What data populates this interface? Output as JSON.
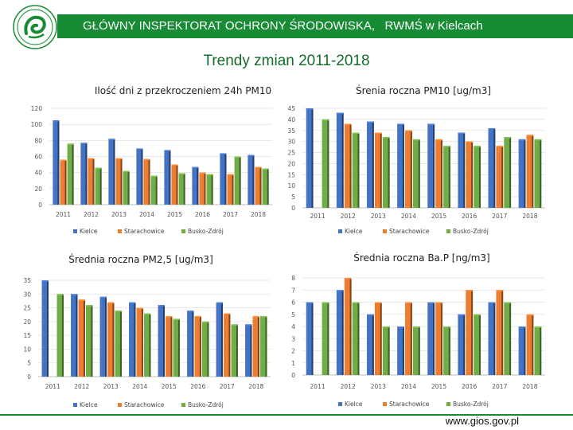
{
  "header": {
    "title": "GŁÓWNY INSPEKTORAT OCHRONY ŚRODOWISKA,   RWMŚ w Kielcach"
  },
  "main_title": "Trendy zmian 2011-2018",
  "footer": {
    "url": "www.gios.gov.pl"
  },
  "colors": {
    "Kielce": "#4472c4",
    "Starachowice": "#ed7d31",
    "Busko-Zdrój": "#70ad47"
  },
  "chart_data": [
    {
      "type": "bar",
      "title": "Ilość dni z przekroczeniem 24h PM10",
      "categories": [
        "2011",
        "2012",
        "2013",
        "2014",
        "2015",
        "2016",
        "2017",
        "2018"
      ],
      "ylim": [
        0,
        120
      ],
      "yticks": [
        0,
        20,
        40,
        60,
        80,
        100,
        120
      ],
      "series": [
        {
          "name": "Kielce",
          "values": [
            105,
            77,
            82,
            70,
            68,
            47,
            64,
            62
          ]
        },
        {
          "name": "Starachowice",
          "values": [
            56,
            58,
            58,
            57,
            50,
            40,
            38,
            47
          ]
        },
        {
          "name": "Busko-Zdrój",
          "values": [
            76,
            46,
            42,
            36,
            39,
            38,
            60,
            45
          ]
        }
      ]
    },
    {
      "type": "bar",
      "title": "Śrenia roczna PM10 [ug/m3]",
      "categories": [
        "2011",
        "2012",
        "2013",
        "2014",
        "2015",
        "2016",
        "2017",
        "2018"
      ],
      "ylim": [
        0,
        45
      ],
      "yticks": [
        0,
        5,
        10,
        15,
        20,
        25,
        30,
        35,
        40,
        45
      ],
      "series": [
        {
          "name": "Kielce",
          "values": [
            45,
            43,
            39,
            38,
            38,
            34,
            36,
            31
          ]
        },
        {
          "name": "Starachowice",
          "values": [
            0,
            38,
            34,
            35,
            31,
            30,
            28,
            33
          ]
        },
        {
          "name": "Busko-Zdrój",
          "values": [
            40,
            34,
            32,
            31,
            28,
            28,
            32,
            31
          ]
        }
      ]
    },
    {
      "type": "bar",
      "title": "Średnia roczna PM2,5 [ug/m3]",
      "categories": [
        "2011",
        "2012",
        "2013",
        "2014",
        "2015",
        "2016",
        "2017",
        "2018"
      ],
      "ylim": [
        0,
        35
      ],
      "yticks": [
        0,
        5,
        10,
        15,
        20,
        25,
        30,
        35
      ],
      "series": [
        {
          "name": "Kielce",
          "values": [
            35,
            30,
            29,
            27,
            26,
            24,
            27,
            19
          ]
        },
        {
          "name": "Starachowice",
          "values": [
            0,
            28,
            27,
            25,
            22,
            22,
            23,
            22
          ]
        },
        {
          "name": "Busko-Zdrój",
          "values": [
            30,
            26,
            24,
            23,
            21,
            20,
            19,
            22
          ]
        }
      ]
    },
    {
      "type": "bar",
      "title": "Średnia roczna Ba.P [ng/m3]",
      "categories": [
        "2011",
        "2012",
        "2013",
        "2014",
        "2015",
        "2016",
        "2017",
        "2018"
      ],
      "ylim": [
        0,
        8
      ],
      "yticks": [
        0,
        1,
        2,
        3,
        4,
        5,
        6,
        7,
        8
      ],
      "series": [
        {
          "name": "Kielce",
          "values": [
            6,
            7,
            5,
            4,
            6,
            5,
            6,
            4
          ]
        },
        {
          "name": "Starachowice",
          "values": [
            0,
            8,
            6,
            6,
            6,
            7,
            7,
            5
          ]
        },
        {
          "name": "Busko-Zdrój",
          "values": [
            6,
            6,
            4,
            4,
            4,
            5,
            6,
            4
          ]
        }
      ]
    }
  ]
}
